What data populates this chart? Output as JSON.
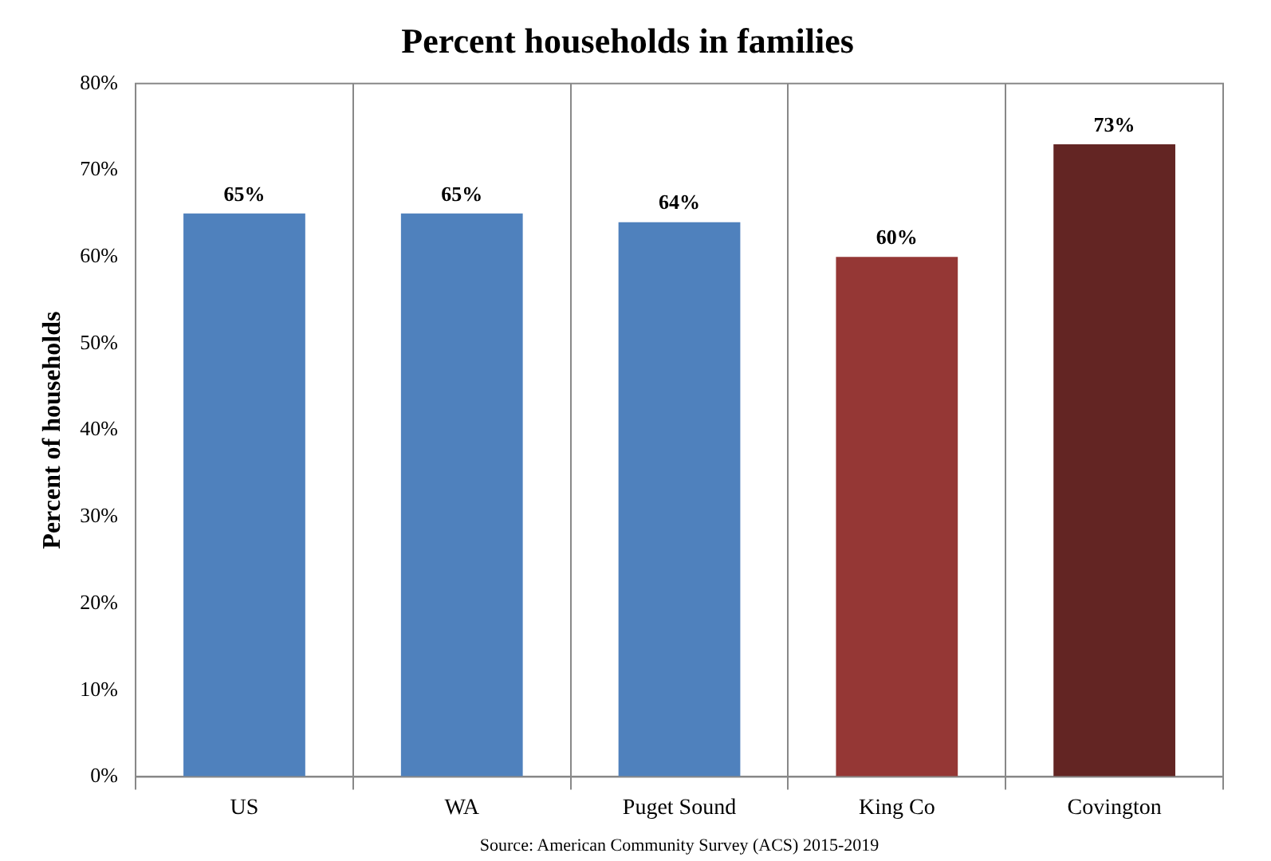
{
  "chart_data": {
    "type": "bar",
    "title": "Percent households in families",
    "ylabel": "Percent of households",
    "categories": [
      "US",
      "WA",
      "Puget Sound",
      "King Co",
      "Covington"
    ],
    "values": [
      65,
      65,
      64,
      60,
      73
    ],
    "colors": [
      "#4f81bd",
      "#4f81bd",
      "#4f81bd",
      "#953735",
      "#632523"
    ],
    "value_labels": [
      "65%",
      "65%",
      "64%",
      "60%",
      "73%"
    ],
    "ylim": [
      0,
      80
    ],
    "yticks": [
      {
        "value": 0,
        "label": "0%"
      },
      {
        "value": 10,
        "label": "10%"
      },
      {
        "value": 20,
        "label": "20%"
      },
      {
        "value": 30,
        "label": "30%"
      },
      {
        "value": 40,
        "label": "40%"
      },
      {
        "value": 50,
        "label": "50%"
      },
      {
        "value": 60,
        "label": "60%"
      },
      {
        "value": 70,
        "label": "70%"
      },
      {
        "value": 80,
        "label": "80%"
      }
    ],
    "grid": "x",
    "legend": false,
    "annotations": [
      "Source: American Community Survey (ACS) 2015-2019"
    ]
  }
}
